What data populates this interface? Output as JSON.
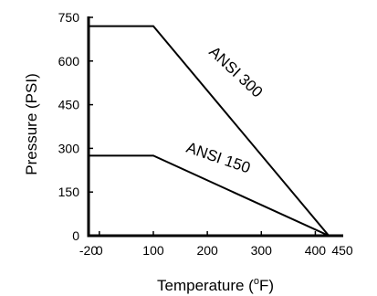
{
  "chart_data": {
    "type": "line",
    "xlabel": "Temperature (",
    "xlabel_superscript": "o",
    "xlabel_suffix": "F)",
    "ylabel": "Pressure (PSI)",
    "xlim": [
      -20,
      450
    ],
    "ylim": [
      0,
      750
    ],
    "x_ticks": [
      -20,
      0,
      100,
      200,
      300,
      400,
      450
    ],
    "y_ticks": [
      0,
      150,
      300,
      450,
      600,
      750
    ],
    "grid": false,
    "colors": {
      "line": "#000000",
      "axis": "#000000",
      "background": "#ffffff"
    },
    "series": [
      {
        "name": "ANSI 300",
        "x": [
          -20,
          100,
          425
        ],
        "y": [
          720,
          720,
          0
        ]
      },
      {
        "name": "ANSI 150",
        "x": [
          -20,
          100,
          425
        ],
        "y": [
          275,
          275,
          0
        ]
      }
    ]
  }
}
